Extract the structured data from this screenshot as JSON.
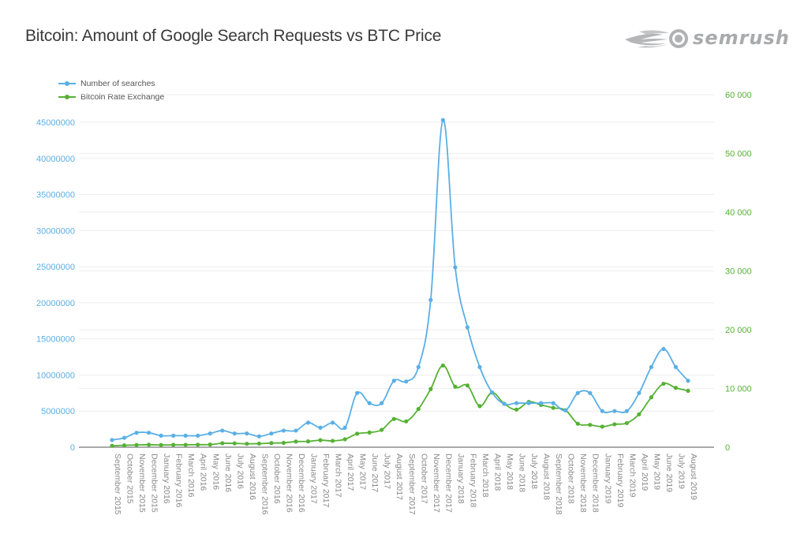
{
  "header": {
    "title": "Bitcoin: Amount of Google Search Requests vs BTC Price",
    "logo_text": "semrush"
  },
  "colors": {
    "searches": "#5aafe6",
    "btc": "#55b134",
    "axis": "#777777",
    "grid": "#eeeeee",
    "tick_text": "#888888"
  },
  "chart_data": {
    "type": "line",
    "title": "Bitcoin: Amount of Google Search Requests vs BTC Price",
    "xlabel": "",
    "ylabel": "",
    "y2label": "",
    "legend_position": "top-left",
    "grid": true,
    "ylim": [
      0,
      45000000
    ],
    "y2lim": [
      0,
      60000
    ],
    "yticks": [
      "0",
      "5000000",
      "10000000",
      "15000000",
      "20000000",
      "25000000",
      "30000000",
      "35000000",
      "40000000",
      "45000000"
    ],
    "y2ticks": [
      "0",
      "10 000",
      "20 000",
      "30 000",
      "40 000",
      "50 000",
      "60 000"
    ],
    "categories": [
      "September 2015",
      "October 2015",
      "November 2015",
      "December 2015",
      "January 2016",
      "February 2016",
      "March 2016",
      "April 2016",
      "May 2016",
      "June 2016",
      "July 2016",
      "August 2016",
      "September 2016",
      "October 2016",
      "November 2016",
      "December 2016",
      "January 2017",
      "February 2017",
      "March 2017",
      "April 2017",
      "May 2017",
      "June 2017",
      "July 2017",
      "August 2017",
      "September 2017",
      "October 2017",
      "November 2017",
      "December 2017",
      "January 2018",
      "February 2018",
      "March 2018",
      "April 2018",
      "May 2018",
      "June 2018",
      "July 2018",
      "August 2018",
      "September 2018",
      "October 2018",
      "November 2018",
      "December 2018",
      "January 2019",
      "February 2019",
      "March 2019",
      "April 2019",
      "May 2019",
      "June 2019",
      "July 2019",
      "August 2019"
    ],
    "series": [
      {
        "name": "Number of searches",
        "axis": "left",
        "values": [
          1000000,
          1300000,
          2000000,
          2000000,
          1600000,
          1600000,
          1600000,
          1600000,
          1900000,
          2300000,
          1900000,
          1900000,
          1500000,
          1900000,
          2300000,
          2300000,
          3400000,
          2700000,
          3400000,
          2700000,
          7500000,
          6100000,
          6100000,
          9200000,
          9100000,
          11100000,
          20400000,
          45300000,
          24900000,
          16600000,
          11100000,
          7600000,
          6000000,
          6100000,
          6100000,
          6100000,
          6100000,
          5100000,
          7500000,
          7500000,
          5000000,
          5000000,
          5000000,
          7500000,
          11100000,
          13600000,
          11100000,
          9200000
        ]
      },
      {
        "name": "Bitcoin Rate Exchange",
        "axis": "right",
        "values": [
          240,
          320,
          380,
          430,
          380,
          400,
          410,
          430,
          450,
          670,
          650,
          580,
          610,
          700,
          740,
          960,
          990,
          1190,
          1080,
          1350,
          2300,
          2500,
          2950,
          4800,
          4400,
          6500,
          9900,
          13900,
          10300,
          10500,
          7000,
          9300,
          7400,
          6400,
          7700,
          7200,
          6700,
          6300,
          4000,
          3800,
          3500,
          3900,
          4100,
          5600,
          8500,
          10800,
          10100,
          9600
        ]
      }
    ]
  }
}
